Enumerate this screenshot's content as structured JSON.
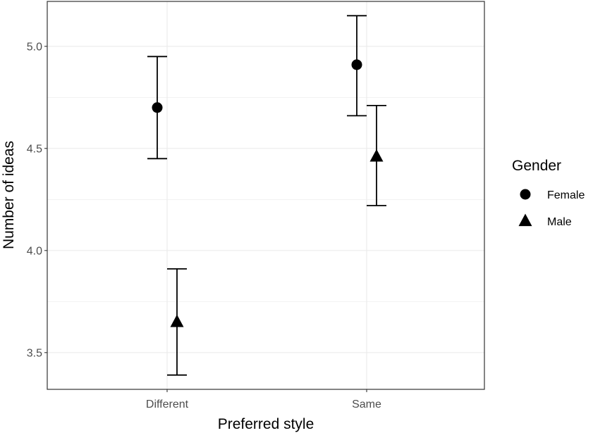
{
  "chart_data": {
    "type": "scatter",
    "title": "",
    "xlabel": "Preferred style",
    "ylabel": "Number of ideas",
    "categories": [
      "Different",
      "Same"
    ],
    "ylim": [
      3.32,
      5.22
    ],
    "yticks": [
      3.5,
      4.0,
      4.5,
      5.0
    ],
    "ytick_labels": [
      "3.5",
      "4.0",
      "4.5",
      "5.0"
    ],
    "grid": true,
    "legend": {
      "title": "Gender",
      "position": "right"
    },
    "series": [
      {
        "name": "Female",
        "marker": "circle",
        "values": [
          4.7,
          4.91
        ],
        "lower": [
          4.45,
          4.66
        ],
        "upper": [
          4.95,
          5.15
        ]
      },
      {
        "name": "Male",
        "marker": "triangle",
        "values": [
          3.65,
          4.46
        ],
        "lower": [
          3.39,
          4.22
        ],
        "upper": [
          3.91,
          4.71
        ]
      }
    ],
    "colors": {
      "marks": "#000000",
      "grid": "#ebebeb",
      "panel_border": "#333333",
      "tick_text": "#4d4d4d"
    }
  }
}
